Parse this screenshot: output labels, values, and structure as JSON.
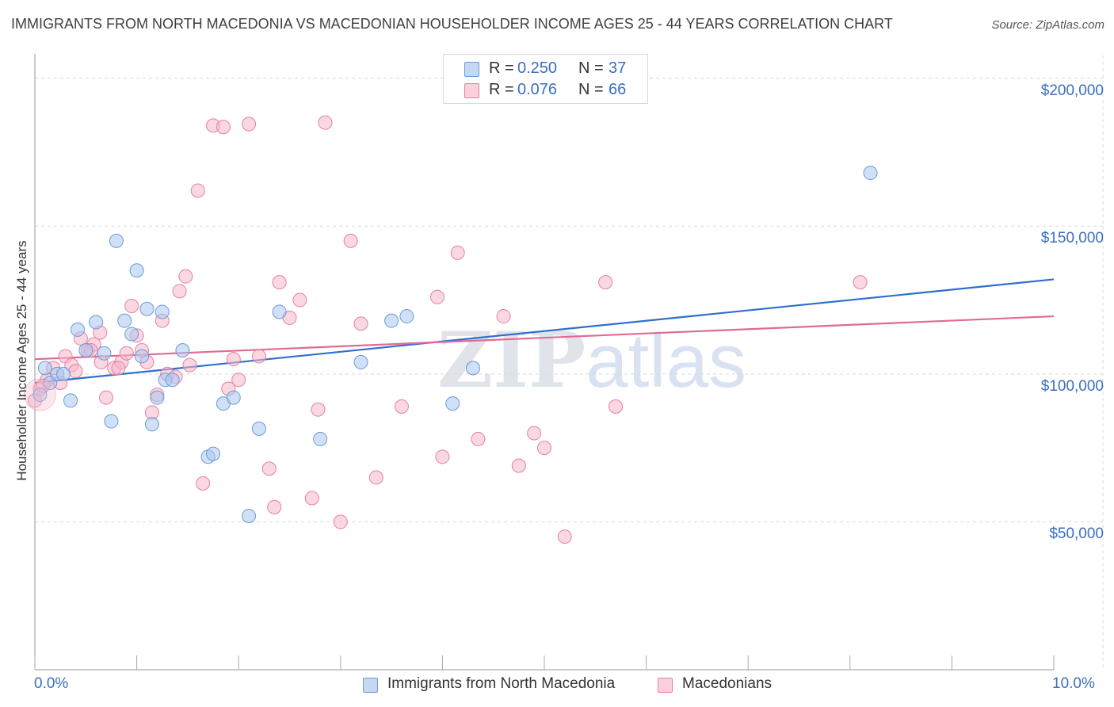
{
  "title": "IMMIGRANTS FROM NORTH MACEDONIA VS MACEDONIAN HOUSEHOLDER INCOME AGES 25 - 44 YEARS CORRELATION CHART",
  "source": "Source: ZipAtlas.com",
  "watermark": {
    "zip": "ZIP",
    "atlas": "atlas"
  },
  "legend": {
    "rows": [
      {
        "r_label": "R = ",
        "r_value": "0.250",
        "n_label": "N = ",
        "n_value": "37"
      },
      {
        "r_label": "R = ",
        "r_value": "0.076",
        "n_label": "N = ",
        "n_value": "66"
      }
    ]
  },
  "bottom_legend": {
    "series1": "Immigrants from North Macedonia",
    "series2": "Macedonians"
  },
  "colors": {
    "blue_fill": "#a9c6ee",
    "blue_stroke": "#6b9bd8",
    "blue_line": "#2f6fcc",
    "pink_fill": "#f5b8cb",
    "pink_stroke": "#e77fa0",
    "pink_line": "#e06a94",
    "grid": "#d9d9d9",
    "tick_text": "#3a6fc0"
  },
  "chart_data": {
    "type": "scatter",
    "xlabel": "",
    "ylabel": "Householder Income Ages 25 - 44 years",
    "xlim": [
      0,
      10
    ],
    "ylim": [
      0,
      205000
    ],
    "x_tick_labels": [
      "0.0%",
      "10.0%"
    ],
    "y_ticks": [
      50000,
      100000,
      150000,
      200000
    ],
    "y_tick_labels": [
      "$50,000",
      "$100,000",
      "$150,000",
      "$200,000"
    ],
    "grid": true,
    "legend_position": "top-center",
    "series": [
      {
        "name": "Immigrants from North Macedonia",
        "color": "#a9c6ee",
        "r": 0.25,
        "n": 37,
        "trend": {
          "x": [
            0,
            10
          ],
          "y": [
            97000,
            132000
          ]
        },
        "points": [
          [
            0.05,
            93000
          ],
          [
            0.1,
            102000
          ],
          [
            0.15,
            97000
          ],
          [
            0.22,
            100000
          ],
          [
            0.28,
            100000
          ],
          [
            0.35,
            91000
          ],
          [
            0.42,
            115000
          ],
          [
            0.5,
            108000
          ],
          [
            0.6,
            117500
          ],
          [
            0.68,
            107000
          ],
          [
            0.75,
            84000
          ],
          [
            0.8,
            145000
          ],
          [
            0.88,
            118000
          ],
          [
            0.95,
            113500
          ],
          [
            1.0,
            135000
          ],
          [
            1.05,
            106000
          ],
          [
            1.1,
            122000
          ],
          [
            1.15,
            83000
          ],
          [
            1.2,
            92000
          ],
          [
            1.25,
            121000
          ],
          [
            1.28,
            98000
          ],
          [
            1.35,
            98000
          ],
          [
            1.45,
            108000
          ],
          [
            1.7,
            72000
          ],
          [
            1.75,
            73000
          ],
          [
            1.85,
            90000
          ],
          [
            1.95,
            92000
          ],
          [
            2.2,
            81500
          ],
          [
            2.1,
            52000
          ],
          [
            2.4,
            121000
          ],
          [
            2.8,
            78000
          ],
          [
            3.2,
            104000
          ],
          [
            3.5,
            118000
          ],
          [
            3.65,
            119500
          ],
          [
            4.1,
            90000
          ],
          [
            4.3,
            102000
          ],
          [
            8.2,
            168000
          ]
        ]
      },
      {
        "name": "Macedonians",
        "color": "#f5b8cb",
        "r": 0.076,
        "n": 66,
        "trend": {
          "x": [
            0,
            10
          ],
          "y": [
            105000,
            119500
          ]
        },
        "points": [
          [
            0.0,
            91000
          ],
          [
            0.05,
            95000
          ],
          [
            0.12,
            98000
          ],
          [
            0.18,
            102000
          ],
          [
            0.25,
            97000
          ],
          [
            0.3,
            106000
          ],
          [
            0.36,
            103000
          ],
          [
            0.45,
            112000
          ],
          [
            0.52,
            108000
          ],
          [
            0.58,
            110000
          ],
          [
            0.64,
            114000
          ],
          [
            0.7,
            92000
          ],
          [
            0.78,
            102000
          ],
          [
            0.85,
            104000
          ],
          [
            0.9,
            107000
          ],
          [
            0.95,
            123000
          ],
          [
            1.0,
            113000
          ],
          [
            1.05,
            108000
          ],
          [
            1.1,
            104000
          ],
          [
            1.15,
            87000
          ],
          [
            1.2,
            93000
          ],
          [
            1.25,
            118000
          ],
          [
            1.3,
            100000
          ],
          [
            1.38,
            99000
          ],
          [
            1.42,
            128000
          ],
          [
            1.48,
            133000
          ],
          [
            1.52,
            103000
          ],
          [
            1.6,
            162000
          ],
          [
            1.65,
            63000
          ],
          [
            1.75,
            184000
          ],
          [
            1.85,
            183500
          ],
          [
            1.9,
            95000
          ],
          [
            1.95,
            105000
          ],
          [
            2.0,
            98000
          ],
          [
            2.1,
            184500
          ],
          [
            2.2,
            106000
          ],
          [
            2.3,
            68000
          ],
          [
            2.35,
            55000
          ],
          [
            2.4,
            131000
          ],
          [
            2.5,
            119000
          ],
          [
            2.6,
            125000
          ],
          [
            2.72,
            58000
          ],
          [
            2.78,
            88000
          ],
          [
            2.85,
            185000
          ],
          [
            3.0,
            50000
          ],
          [
            3.1,
            145000
          ],
          [
            3.2,
            117000
          ],
          [
            3.35,
            65000
          ],
          [
            3.6,
            89000
          ],
          [
            3.95,
            126000
          ],
          [
            4.0,
            72000
          ],
          [
            4.15,
            141000
          ],
          [
            4.35,
            78000
          ],
          [
            4.6,
            119500
          ],
          [
            4.75,
            69000
          ],
          [
            4.9,
            80000
          ],
          [
            5.0,
            75000
          ],
          [
            5.2,
            45000
          ],
          [
            5.6,
            131000
          ],
          [
            5.7,
            89000
          ],
          [
            0.55,
            108000
          ],
          [
            0.65,
            104000
          ],
          [
            0.82,
            102000
          ],
          [
            0.08,
            96000
          ],
          [
            0.4,
            101000
          ],
          [
            8.1,
            131000
          ]
        ]
      }
    ]
  }
}
